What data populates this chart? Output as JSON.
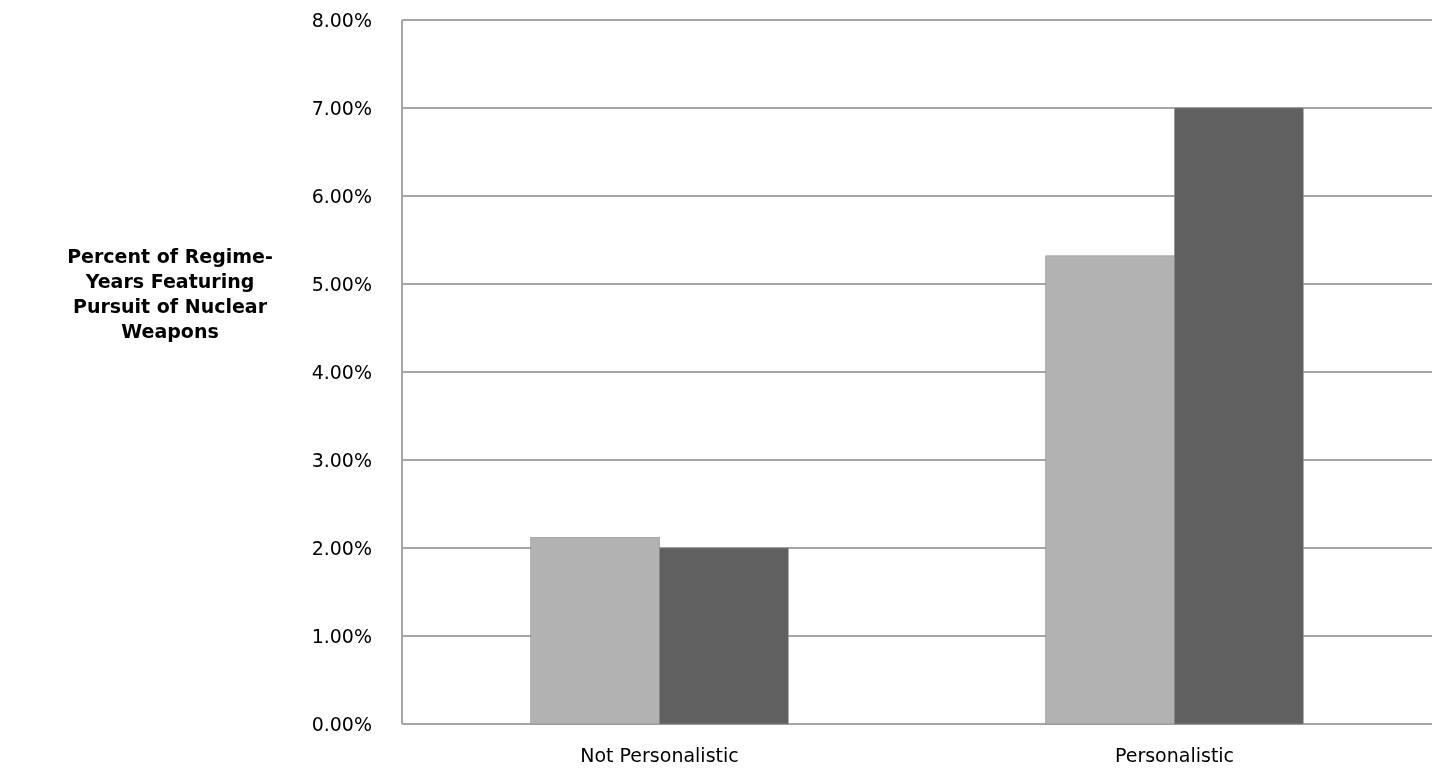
{
  "chart_data": {
    "type": "bar",
    "ylabel": "Percent of Regime-Years Featuring Pursuit of Nuclear Weapons",
    "categories": [
      "Not Personalistic",
      "Personalistic"
    ],
    "series": [
      {
        "color": "#b2b2b2",
        "values": [
          2.12,
          5.32
        ]
      },
      {
        "color": "#606060",
        "values": [
          2.0,
          7.0
        ]
      }
    ],
    "ylim": [
      0,
      8
    ],
    "yticks": [
      {
        "value": 0,
        "label": "0.00%"
      },
      {
        "value": 1,
        "label": "1.00%"
      },
      {
        "value": 2,
        "label": "2.00%"
      },
      {
        "value": 3,
        "label": "3.00%"
      },
      {
        "value": 4,
        "label": "4.00%"
      },
      {
        "value": 5,
        "label": "5.00%"
      },
      {
        "value": 6,
        "label": "6.00%"
      },
      {
        "value": 7,
        "label": "7.00%"
      },
      {
        "value": 8,
        "label": "8.00%"
      }
    ],
    "grid": "y"
  }
}
